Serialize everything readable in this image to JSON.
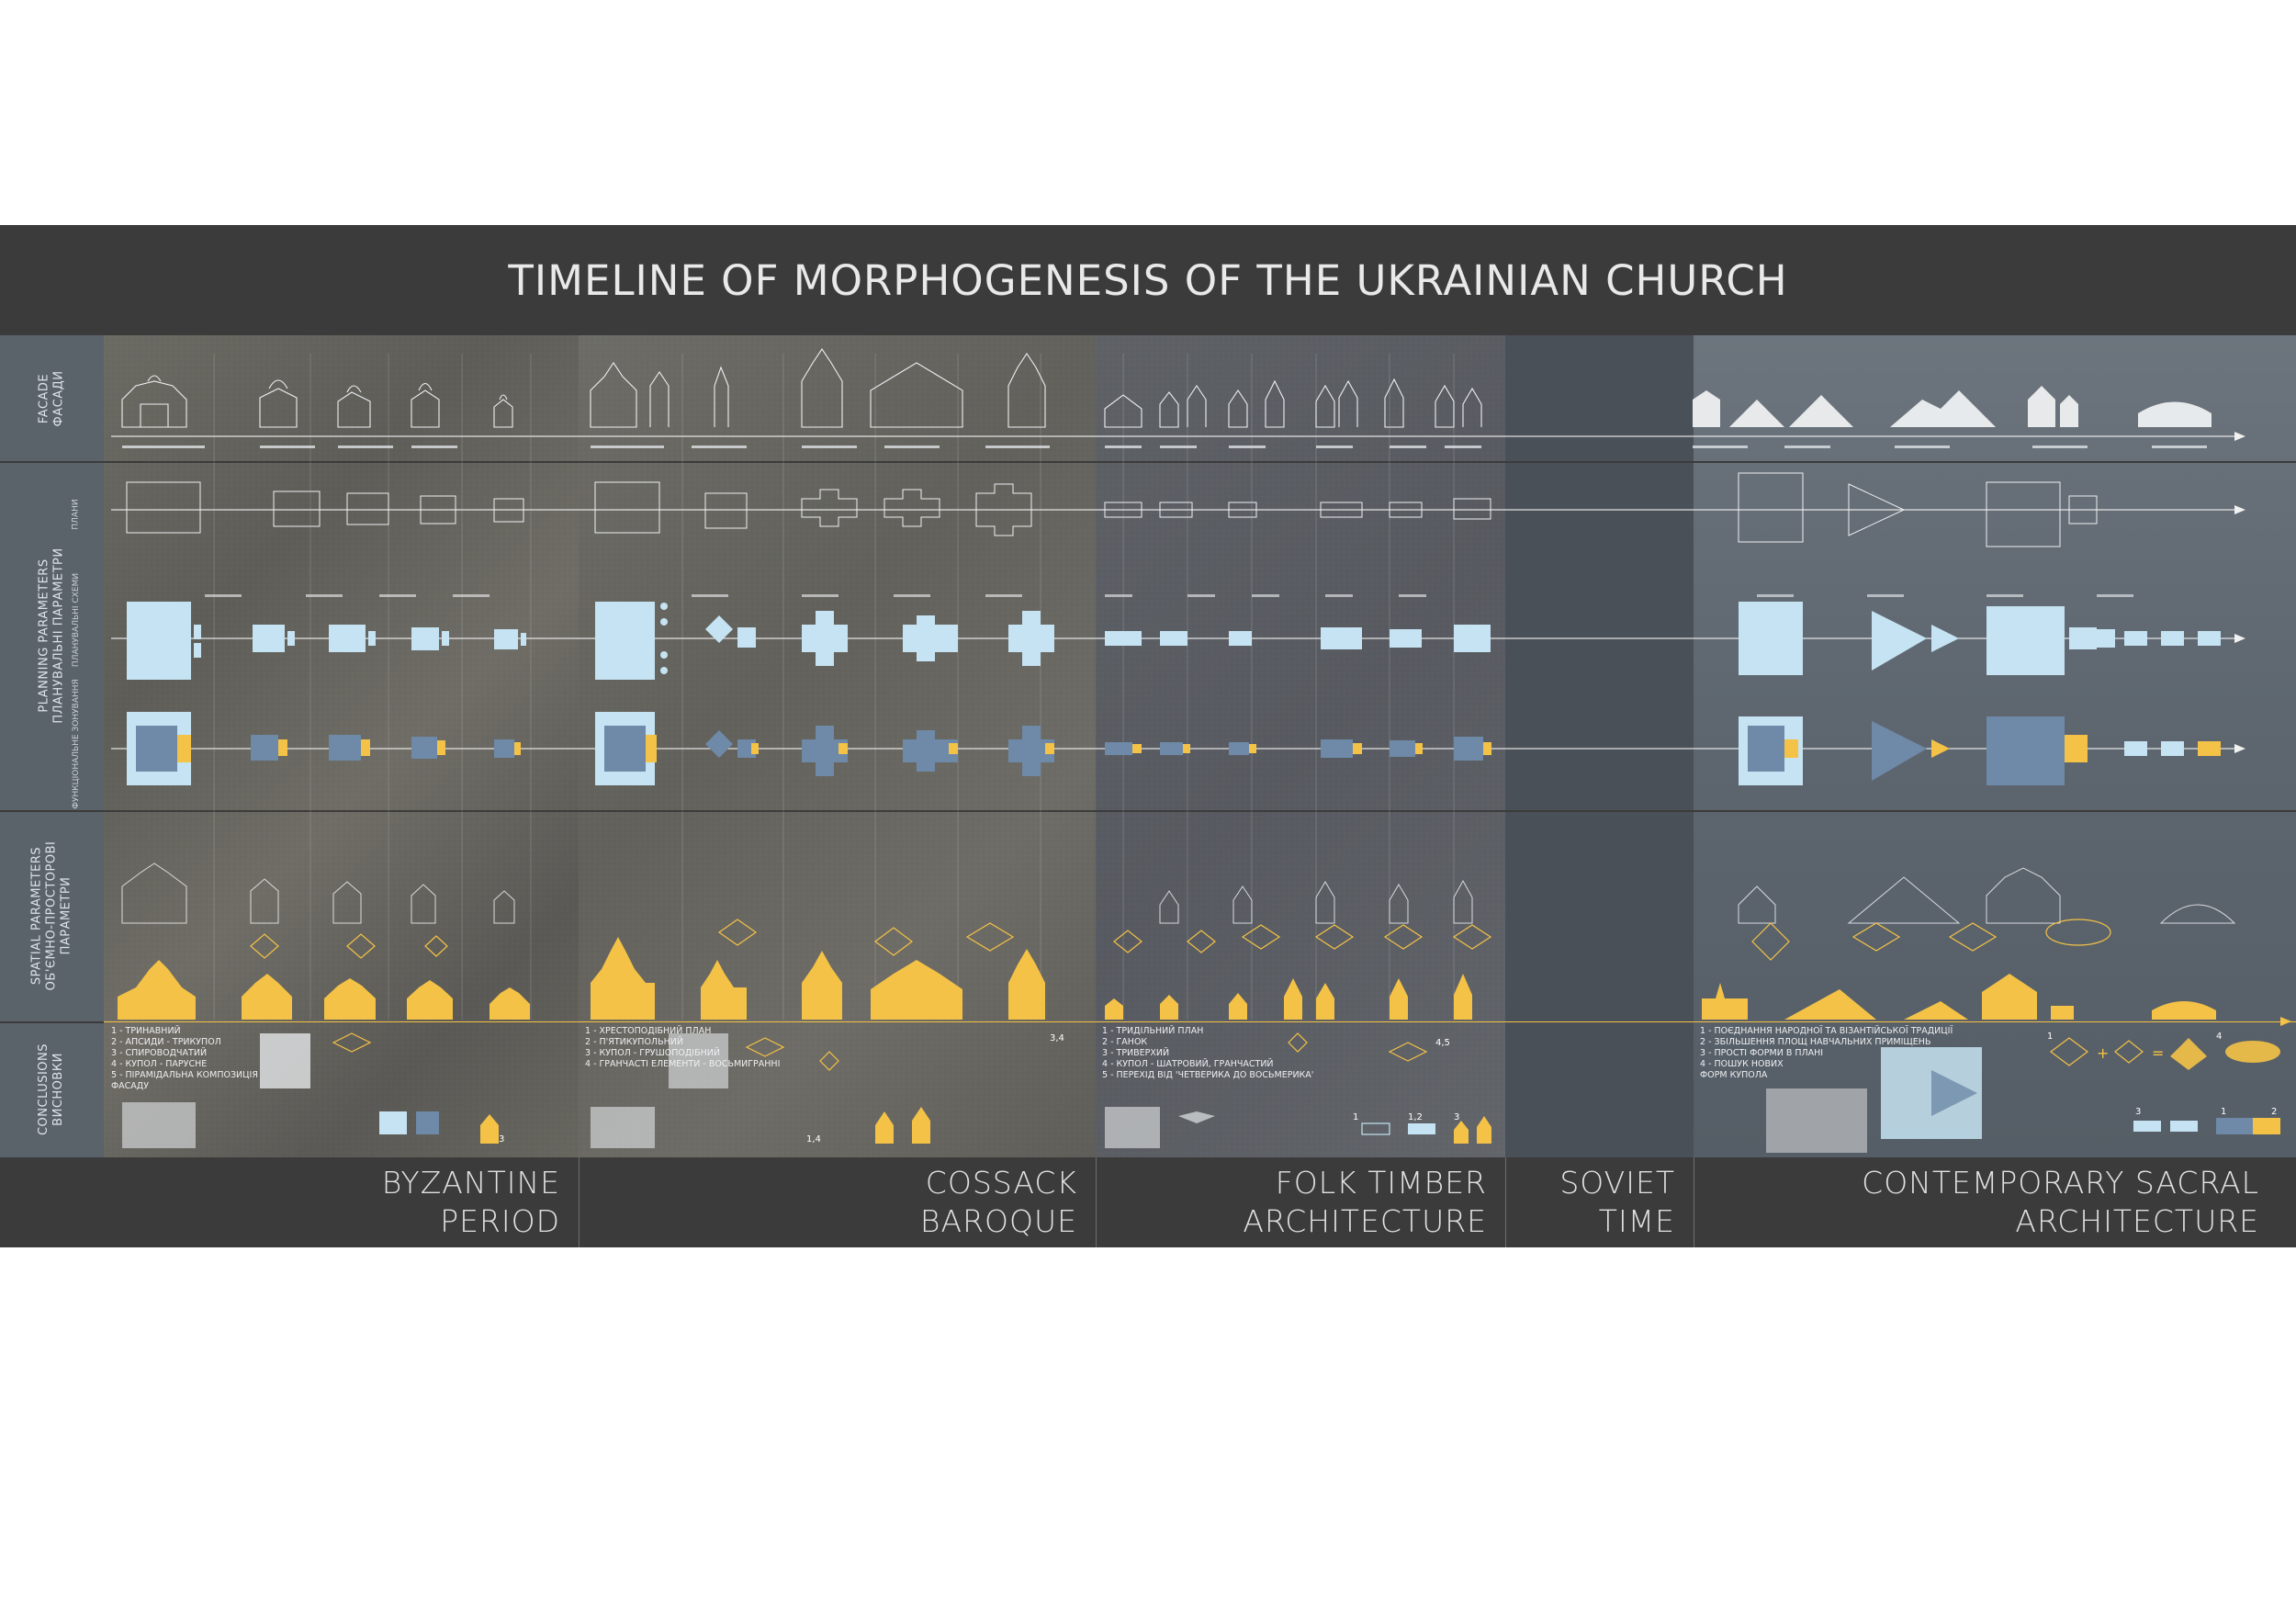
{
  "title": "TIMELINE OF MORPHOGENESIS OF THE UKRAINIAN CHURCH",
  "rows": {
    "facade": {
      "en": "FACADE",
      "ua": "ФАСАДИ"
    },
    "planning": {
      "en": "PLANNING PARAMETERS",
      "ua": "ПЛАНУВАЛЬНІ ПАРАМЕТРИ"
    },
    "spatial": {
      "en": "SPATIAL PARAMETERS",
      "ua": "ОБ'ЄМНО-ПРОСТОРОВІ",
      "ua2": "ПАРАМЕТРИ"
    },
    "conclusions": {
      "en": "CONCLUSIONS",
      "ua": "ВИСНОВКИ"
    }
  },
  "sub_labels": {
    "plans": "ПЛАНИ",
    "schemes": "ПЛАНУВАЛЬНІ СХЕМИ",
    "functional": "ФУНКЦІОНАЛЬНЕ ЗОНУВАННЯ"
  },
  "periods": [
    {
      "line1": "BYZANTINE",
      "line2": "PERIOD"
    },
    {
      "line1": "COSSACK",
      "line2": "BAROQUE"
    },
    {
      "line1": "FOLK TIMBER",
      "line2": "ARCHITECTURE"
    },
    {
      "line1": "SOVIET",
      "line2": "TIME"
    },
    {
      "line1": "CONTEMPORARY SACRAL",
      "line2": "ARCHITECTURE"
    }
  ],
  "conclusions": {
    "byzantine": [
      "1 - ТРИНАВНИЙ",
      "2 - АПСИДИ - ТРИКУПОЛ",
      "3 - СПИРОВОДЧАТИЙ",
      "4 - КУПОЛ - ПАРУСНЕ",
      "5 - ПІРАМІДАЛЬНА КОМПОЗИЦІЯ",
      "ФАСАДУ"
    ],
    "baroque": [
      "1 - ХРЕСТОПОДІБНИЙ ПЛАН",
      "2 - П'ЯТИКУПОЛЬНИЙ",
      "3 - КУПОЛ - ГРУШОПОДІБНИЙ",
      "4 - ГРАНЧАСТІ ЕЛЕМЕНТИ - ВОСЬМИГРАННІ"
    ],
    "timber": [
      "1 - ТРИДІЛЬНИЙ ПЛАН",
      "2 - ГАНОК",
      "3 - ТРИВЕРХИЙ",
      "4 - КУПОЛ - ШАТРОВИЙ, ГРАНЧАСТИЙ",
      "5 - ПЕРЕХІД ВІД 'ЧЕТВЕРИКА ДО ВОСЬМЕРИКА'"
    ],
    "contemporary": [
      "1 - ПОЄДНАННЯ НАРОДНОЇ ТА ВІЗАНТІЙСЬКОЇ ТРАДИЦІЇ",
      "2 - ЗБІЛЬШЕННЯ ПЛОЩ НАВЧАЛЬНИХ ПРИМІЩЕНЬ",
      "3 - ПРОСТІ ФОРМИ В ПЛАНІ",
      "4 - ПОШУК НОВИХ",
      "ФОРМ КУПОЛА"
    ]
  },
  "conclusion_numbers": {
    "byz_a": "3",
    "bar_a": "3,4",
    "bar_b": "1,4",
    "tim_a": "4,5",
    "tim_b": "1",
    "tim_c": "1,2",
    "tim_d": "3",
    "con_a": "1",
    "con_b": "4",
    "con_c": "3",
    "con_d": "2",
    "con_e": "1",
    "con_plus": "+",
    "con_eq": "="
  },
  "colors": {
    "background": "#3b3b3b",
    "label_column": "#5a626a",
    "highlight_yellow": "#f4c246",
    "plan_blue": "#c5e3f2",
    "plan_mid_blue": "#6e8aa8",
    "outline": "#e9ecef"
  }
}
